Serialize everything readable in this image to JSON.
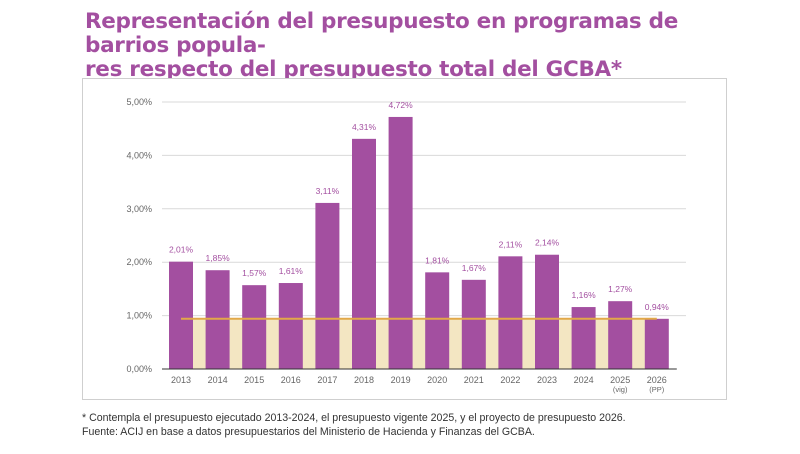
{
  "title_line1": "Representación del presupuesto en programas de barrios popula-",
  "title_line2": "res respecto del presupuesto total del GCBA*",
  "footnote_line1": "* Contempla el presupuesto ejecutado 2013-2024, el presupuesto vigente 2025, y el proyecto de presupuesto 2026.",
  "footnote_line2": "Fuente: ACIJ en base a datos presupuestarios del Ministerio de Hacienda y Finanzas del GCBA.",
  "colors": {
    "bar": "#a34fa0",
    "title": "#a34fa0",
    "reference_line": "#e2a848",
    "reference_fill": "#f3e6c2",
    "grid": "#d9d9d9"
  },
  "chart_data": {
    "type": "bar",
    "title": "Representación del presupuesto en programas de barrios populares respecto del presupuesto total del GCBA*",
    "xlabel": "",
    "ylabel": "",
    "categories": [
      "2013",
      "2014",
      "2015",
      "2016",
      "2017",
      "2018",
      "2019",
      "2020",
      "2021",
      "2022",
      "2023",
      "2024",
      "2025",
      "2026"
    ],
    "category_sublabels": [
      "",
      "",
      "",
      "",
      "",
      "",
      "",
      "",
      "",
      "",
      "",
      "",
      "(vig)",
      "(PP)"
    ],
    "values": [
      2.01,
      1.85,
      1.57,
      1.61,
      3.11,
      4.31,
      4.72,
      1.81,
      1.67,
      2.11,
      2.14,
      1.16,
      1.27,
      0.94
    ],
    "data_labels": [
      "2,01%",
      "1,85%",
      "1,57%",
      "1,61%",
      "3,11%",
      "4,31%",
      "4,72%",
      "1,81%",
      "1,67%",
      "2,11%",
      "2,14%",
      "1,16%",
      "1,27%",
      "0,94%"
    ],
    "reference_line": {
      "value": 0.94,
      "from": "2013",
      "to": "2026",
      "filled_below": true
    },
    "ylim": [
      0,
      5
    ],
    "yticks": [
      0,
      1,
      2,
      3,
      4,
      5
    ],
    "ytick_labels": [
      "0,00%",
      "1,00%",
      "2,00%",
      "3,00%",
      "4,00%",
      "5,00%"
    ],
    "grid": true,
    "legend": "none"
  }
}
